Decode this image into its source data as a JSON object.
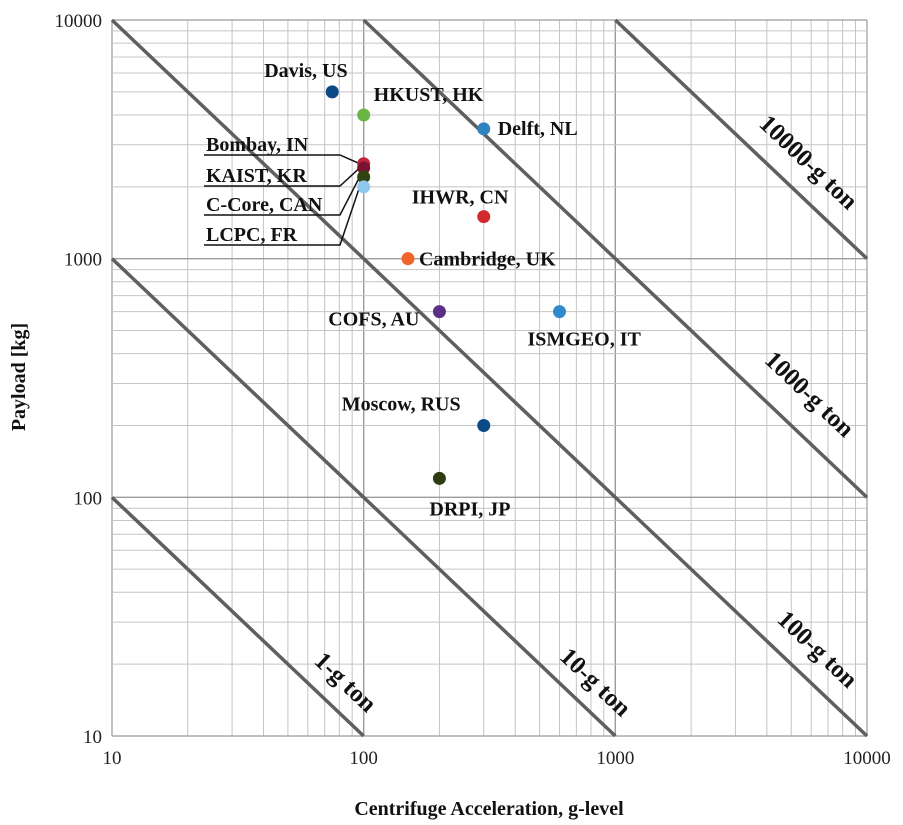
{
  "chart_data": {
    "type": "scatter",
    "xlabel": "Centrifuge Acceleration, g-level",
    "ylabel": "Payload [kg]",
    "x_scale": "log",
    "y_scale": "log",
    "xlim": [
      10,
      10000
    ],
    "ylim": [
      10,
      10000
    ],
    "x_ticks": [
      "10",
      "100",
      "1000",
      "10000"
    ],
    "y_ticks": [
      "10",
      "100",
      "1000",
      "10000"
    ],
    "grid": true,
    "points": [
      {
        "label": "Davis, US",
        "x": 75,
        "y": 5000,
        "color": "#0b4a86"
      },
      {
        "label": "HKUST, HK",
        "x": 100,
        "y": 4000,
        "color": "#6bb545"
      },
      {
        "label": "Delft, NL",
        "x": 300,
        "y": 3500,
        "color": "#2e83c0"
      },
      {
        "label": "Bombay, IN",
        "x": 100,
        "y": 2500,
        "color": "#c0263a"
      },
      {
        "label": "KAIST, KR",
        "x": 100,
        "y": 2400,
        "color": "#7a1330"
      },
      {
        "label": "C-Core, CAN",
        "x": 100,
        "y": 2200,
        "color": "#2f4410"
      },
      {
        "label": "LCPC, FR",
        "x": 100,
        "y": 2000,
        "color": "#8ec7ef"
      },
      {
        "label": "IHWR, CN",
        "x": 300,
        "y": 1500,
        "color": "#d42a2d"
      },
      {
        "label": "Cambridge, UK",
        "x": 150,
        "y": 1000,
        "color": "#f0632a"
      },
      {
        "label": "COFS, AU",
        "x": 200,
        "y": 600,
        "color": "#5b2f86"
      },
      {
        "label": "ISMGEO, IT",
        "x": 600,
        "y": 600,
        "color": "#2f8acb"
      },
      {
        "label": "Moscow, RUS",
        "x": 300,
        "y": 200,
        "color": "#0b4a86"
      },
      {
        "label": "DRPI, JP",
        "x": 200,
        "y": 120,
        "color": "#2f3b10"
      }
    ],
    "reference_lines": [
      {
        "label": "1-g ton",
        "g_ton": 1
      },
      {
        "label": "10-g ton",
        "g_ton": 10
      },
      {
        "label": "100-g ton",
        "g_ton": 100
      },
      {
        "label": "1000-g ton",
        "g_ton": 1000
      },
      {
        "label": "10000-g ton",
        "g_ton": 10000
      }
    ]
  }
}
